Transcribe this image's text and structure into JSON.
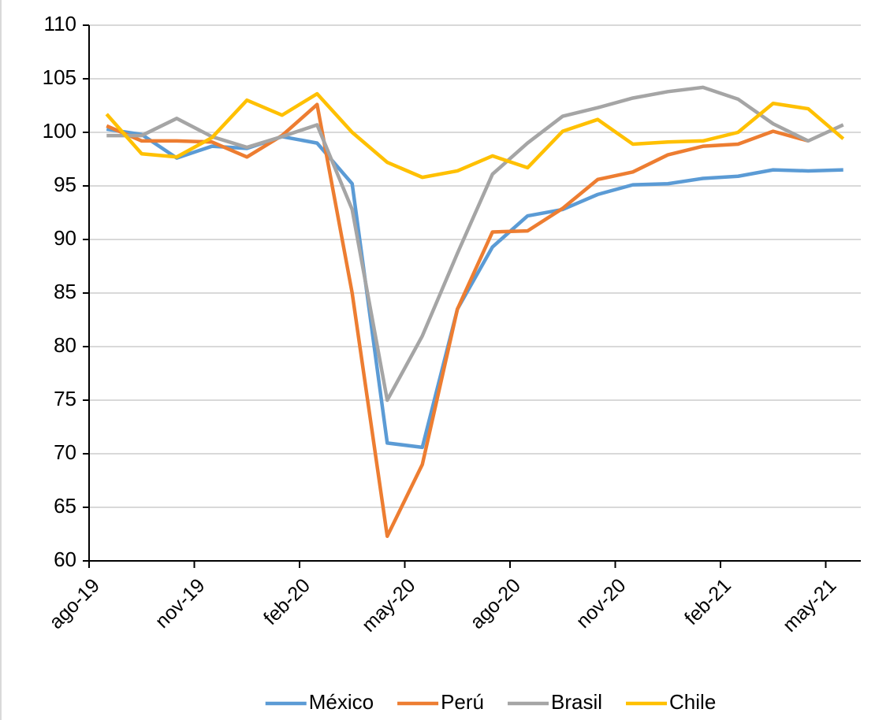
{
  "chart_data": {
    "type": "line",
    "categories": [
      "ago-19",
      null,
      null,
      "nov-19",
      null,
      null,
      "feb-20",
      null,
      null,
      "may-20",
      null,
      null,
      "ago-20",
      null,
      null,
      "nov-20",
      null,
      null,
      "feb-21",
      null,
      null,
      "may-21"
    ],
    "series": [
      {
        "name": "México",
        "color": "#5b9bd5",
        "values": [
          100.3,
          99.8,
          97.6,
          98.7,
          98.5,
          99.6,
          99.0,
          95.2,
          71.0,
          70.6,
          83.5,
          89.3,
          92.2,
          92.8,
          94.2,
          95.1,
          95.2,
          95.7,
          95.9,
          96.5,
          96.4,
          96.5
        ]
      },
      {
        "name": "Perú",
        "color": "#ed7d31",
        "values": [
          100.6,
          99.2,
          99.2,
          99.1,
          97.7,
          99.7,
          102.6,
          85.0,
          62.3,
          69.0,
          83.5,
          90.7,
          90.8,
          92.9,
          95.6,
          96.3,
          97.9,
          98.7,
          98.9,
          100.1,
          99.2,
          null
        ]
      },
      {
        "name": "Brasil",
        "color": "#a5a5a5",
        "values": [
          99.7,
          99.7,
          101.3,
          99.6,
          98.6,
          99.6,
          100.7,
          92.8,
          75.0,
          81.0,
          88.7,
          96.1,
          99.0,
          101.5,
          102.3,
          103.2,
          103.8,
          104.2,
          103.1,
          100.8,
          99.2,
          100.7
        ]
      },
      {
        "name": "Chile",
        "color": "#ffc000",
        "values": [
          101.7,
          98.0,
          97.7,
          99.5,
          103.0,
          101.6,
          103.6,
          100.0,
          97.2,
          95.8,
          96.4,
          97.8,
          96.7,
          100.1,
          101.2,
          98.9,
          99.1,
          99.2,
          100.0,
          102.7,
          102.2,
          99.4
        ]
      }
    ],
    "ylim": [
      60,
      110
    ],
    "yticks": [
      60,
      65,
      70,
      75,
      80,
      85,
      90,
      95,
      100,
      105,
      110
    ],
    "grid": true,
    "legend": "bottom"
  }
}
